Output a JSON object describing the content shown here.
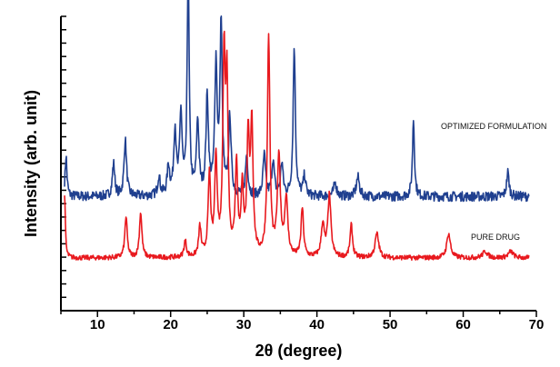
{
  "chart_data": {
    "type": "line",
    "xlabel": "2θ (degree)",
    "ylabel": "Intensity (arb. unit)",
    "xlim": [
      5,
      70
    ],
    "xticks": [
      10,
      20,
      30,
      40,
      50,
      60,
      70
    ],
    "x_minor_step": 5,
    "y_tick_count": 23,
    "grid": false,
    "legend": "inline labels right of each trace",
    "series": [
      {
        "name": "OPTIMIZED FORMULATION",
        "color": "#1f3f8f",
        "baseline": 0.38,
        "noise": 0.03,
        "x_end": 69,
        "peaks": [
          {
            "x": 5.7,
            "h": 0.25,
            "w": 0.15
          },
          {
            "x": 12.2,
            "h": 0.2,
            "w": 0.2
          },
          {
            "x": 13.8,
            "h": 0.35,
            "w": 0.2
          },
          {
            "x": 18.4,
            "h": 0.12,
            "w": 0.2
          },
          {
            "x": 19.7,
            "h": 0.18,
            "w": 0.2
          },
          {
            "x": 20.6,
            "h": 0.4,
            "w": 0.2
          },
          {
            "x": 21.4,
            "h": 0.5,
            "w": 0.2
          },
          {
            "x": 22.4,
            "h": 1.42,
            "w": 0.16
          },
          {
            "x": 23.7,
            "h": 0.45,
            "w": 0.2
          },
          {
            "x": 25.0,
            "h": 0.6,
            "w": 0.2
          },
          {
            "x": 26.2,
            "h": 0.8,
            "w": 0.2
          },
          {
            "x": 26.9,
            "h": 1.05,
            "w": 0.18
          },
          {
            "x": 28.1,
            "h": 0.48,
            "w": 0.2
          },
          {
            "x": 30.4,
            "h": 0.25,
            "w": 0.2
          },
          {
            "x": 32.8,
            "h": 0.25,
            "w": 0.2
          },
          {
            "x": 34.0,
            "h": 0.22,
            "w": 0.2
          },
          {
            "x": 35.2,
            "h": 0.2,
            "w": 0.2
          },
          {
            "x": 36.9,
            "h": 0.92,
            "w": 0.18
          },
          {
            "x": 38.3,
            "h": 0.12,
            "w": 0.2
          },
          {
            "x": 42.5,
            "h": 0.08,
            "w": 0.25
          },
          {
            "x": 45.6,
            "h": 0.12,
            "w": 0.25
          },
          {
            "x": 53.2,
            "h": 0.48,
            "w": 0.16
          },
          {
            "x": 66.1,
            "h": 0.15,
            "w": 0.2
          }
        ]
      },
      {
        "name": "PURE DRUG",
        "color": "#e8191e",
        "baseline": 0.0,
        "noise": 0.015,
        "x_end": 69,
        "peaks": [
          {
            "x": 5.5,
            "h": 0.4,
            "w": 0.12
          },
          {
            "x": 13.9,
            "h": 0.25,
            "w": 0.2
          },
          {
            "x": 15.9,
            "h": 0.28,
            "w": 0.2
          },
          {
            "x": 22.0,
            "h": 0.1,
            "w": 0.2
          },
          {
            "x": 24.0,
            "h": 0.18,
            "w": 0.2
          },
          {
            "x": 25.3,
            "h": 0.5,
            "w": 0.2
          },
          {
            "x": 26.2,
            "h": 0.6,
            "w": 0.2
          },
          {
            "x": 27.3,
            "h": 1.2,
            "w": 0.2
          },
          {
            "x": 27.7,
            "h": 1.0,
            "w": 0.18
          },
          {
            "x": 29.0,
            "h": 0.55,
            "w": 0.2
          },
          {
            "x": 29.8,
            "h": 0.4,
            "w": 0.2
          },
          {
            "x": 30.6,
            "h": 0.7,
            "w": 0.2
          },
          {
            "x": 31.1,
            "h": 0.8,
            "w": 0.2
          },
          {
            "x": 33.4,
            "h": 1.35,
            "w": 0.2
          },
          {
            "x": 34.8,
            "h": 0.6,
            "w": 0.25
          },
          {
            "x": 35.8,
            "h": 0.35,
            "w": 0.25
          },
          {
            "x": 38.0,
            "h": 0.3,
            "w": 0.2
          },
          {
            "x": 40.8,
            "h": 0.2,
            "w": 0.25
          },
          {
            "x": 41.7,
            "h": 0.38,
            "w": 0.25
          },
          {
            "x": 44.7,
            "h": 0.2,
            "w": 0.2
          },
          {
            "x": 48.2,
            "h": 0.15,
            "w": 0.3
          },
          {
            "x": 58.0,
            "h": 0.15,
            "w": 0.3
          },
          {
            "x": 63.0,
            "h": 0.04,
            "w": 0.4
          },
          {
            "x": 66.5,
            "h": 0.04,
            "w": 0.4
          }
        ]
      }
    ]
  }
}
